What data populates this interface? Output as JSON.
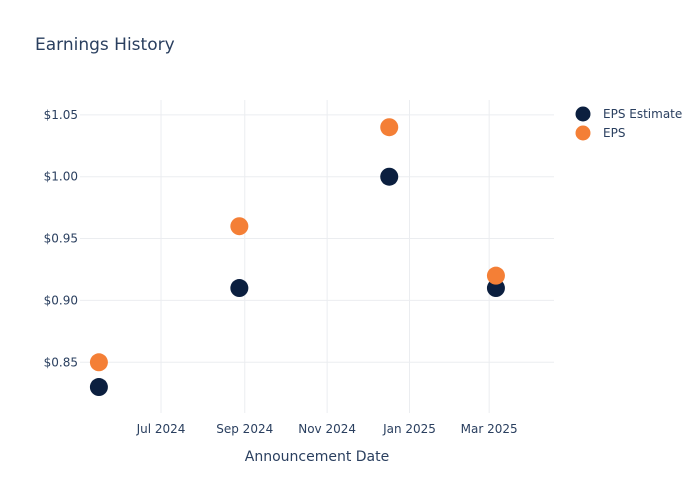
{
  "chart_data": {
    "type": "scatter",
    "title": "Earnings History",
    "xlabel": "Announcement Date",
    "ylabel": "",
    "x_ticks": [
      {
        "date": "2024-07-01",
        "label": "Jul 2024"
      },
      {
        "date": "2024-09-01",
        "label": "Sep 2024"
      },
      {
        "date": "2024-11-01",
        "label": "Nov 2024"
      },
      {
        "date": "2025-01-01",
        "label": "Jan 2025"
      },
      {
        "date": "2025-03-01",
        "label": "Mar 2025"
      }
    ],
    "xlim": [
      "2024-05-02",
      "2025-04-18"
    ],
    "y_ticks": [
      {
        "value": 0.85,
        "label": "$0.85"
      },
      {
        "value": 0.9,
        "label": "$0.90"
      },
      {
        "value": 0.95,
        "label": "$0.95"
      },
      {
        "value": 1.0,
        "label": "$1.00"
      },
      {
        "value": 1.05,
        "label": "$1.05"
      }
    ],
    "ylim": [
      0.809,
      1.062
    ],
    "grid": true,
    "legend_position": "top-right",
    "series": [
      {
        "name": "EPS Estimate",
        "color": "#0b1f3f",
        "points": [
          {
            "x": "2024-05-16",
            "y": 0.83
          },
          {
            "x": "2024-08-28",
            "y": 0.91
          },
          {
            "x": "2024-12-17",
            "y": 1.0
          },
          {
            "x": "2025-03-06",
            "y": 0.91
          }
        ]
      },
      {
        "name": "EPS",
        "color": "#f47f36",
        "points": [
          {
            "x": "2024-05-16",
            "y": 0.85
          },
          {
            "x": "2024-08-28",
            "y": 0.96
          },
          {
            "x": "2024-12-17",
            "y": 1.04
          },
          {
            "x": "2025-03-06",
            "y": 0.92
          }
        ]
      }
    ]
  }
}
